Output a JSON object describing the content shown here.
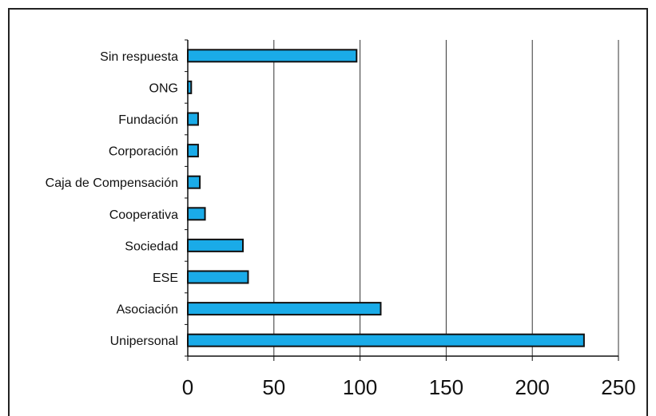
{
  "chart_data": {
    "type": "bar",
    "orientation": "horizontal",
    "categories": [
      "Sin respuesta",
      "ONG",
      "Fundación",
      "Corporación",
      "Caja de Compensación",
      "Cooperativa",
      "Sociedad",
      "ESE",
      "Asociación",
      "Unipersonal"
    ],
    "values": [
      98,
      2,
      6,
      6,
      7,
      10,
      32,
      35,
      112,
      230
    ],
    "xlim": [
      0,
      250
    ],
    "xticks": [
      0,
      50,
      100,
      150,
      200,
      250
    ],
    "grid": "vertical",
    "bar_color": "#1aabe8",
    "bar_stroke": "#111111"
  }
}
